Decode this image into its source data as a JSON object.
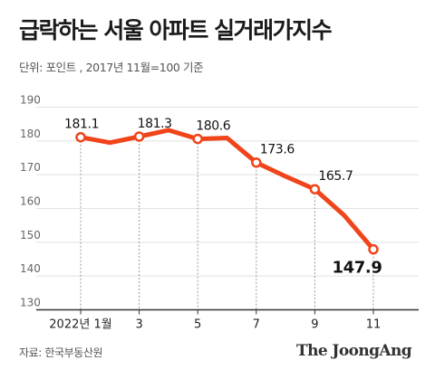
{
  "header": {
    "title": "급락하는 서울 아파트 실거래가지수",
    "unit_note": "단위: 포인트 , 2017년 11월=100 기준"
  },
  "footer": {
    "source": "자료: 한국부동산원",
    "brand": "The JoongAng"
  },
  "colors": {
    "line": "#f0441b",
    "grid": "#e2e2e2",
    "axis": "#333333",
    "guide": "#999999"
  },
  "chart_data": {
    "type": "line",
    "title": "급락하는 서울 아파트 실거래가지수",
    "ylim": [
      130,
      190
    ],
    "yticks": [
      130,
      140,
      150,
      160,
      170,
      180,
      190
    ],
    "x": [
      1,
      2,
      3,
      4,
      5,
      6,
      7,
      8,
      9,
      10,
      11
    ],
    "xtick_labels": [
      {
        "x": 1,
        "label": "2022년 1월"
      },
      {
        "x": 3,
        "label": "3"
      },
      {
        "x": 5,
        "label": "5"
      },
      {
        "x": 7,
        "label": "7"
      },
      {
        "x": 9,
        "label": "9"
      },
      {
        "x": 11,
        "label": "11"
      }
    ],
    "series": [
      {
        "values": [
          181.1,
          179.5,
          181.3,
          183.2,
          180.6,
          180.9,
          173.6,
          169.5,
          165.7,
          158.0,
          147.9
        ]
      }
    ],
    "labeled_points": [
      {
        "x": 1,
        "label": "181.1"
      },
      {
        "x": 3,
        "label": "181.3"
      },
      {
        "x": 5,
        "label": "180.6"
      },
      {
        "x": 7,
        "label": "173.6"
      },
      {
        "x": 9,
        "label": "165.7"
      },
      {
        "x": 11,
        "label": "147.9"
      }
    ],
    "grid": true,
    "legend": "none"
  }
}
